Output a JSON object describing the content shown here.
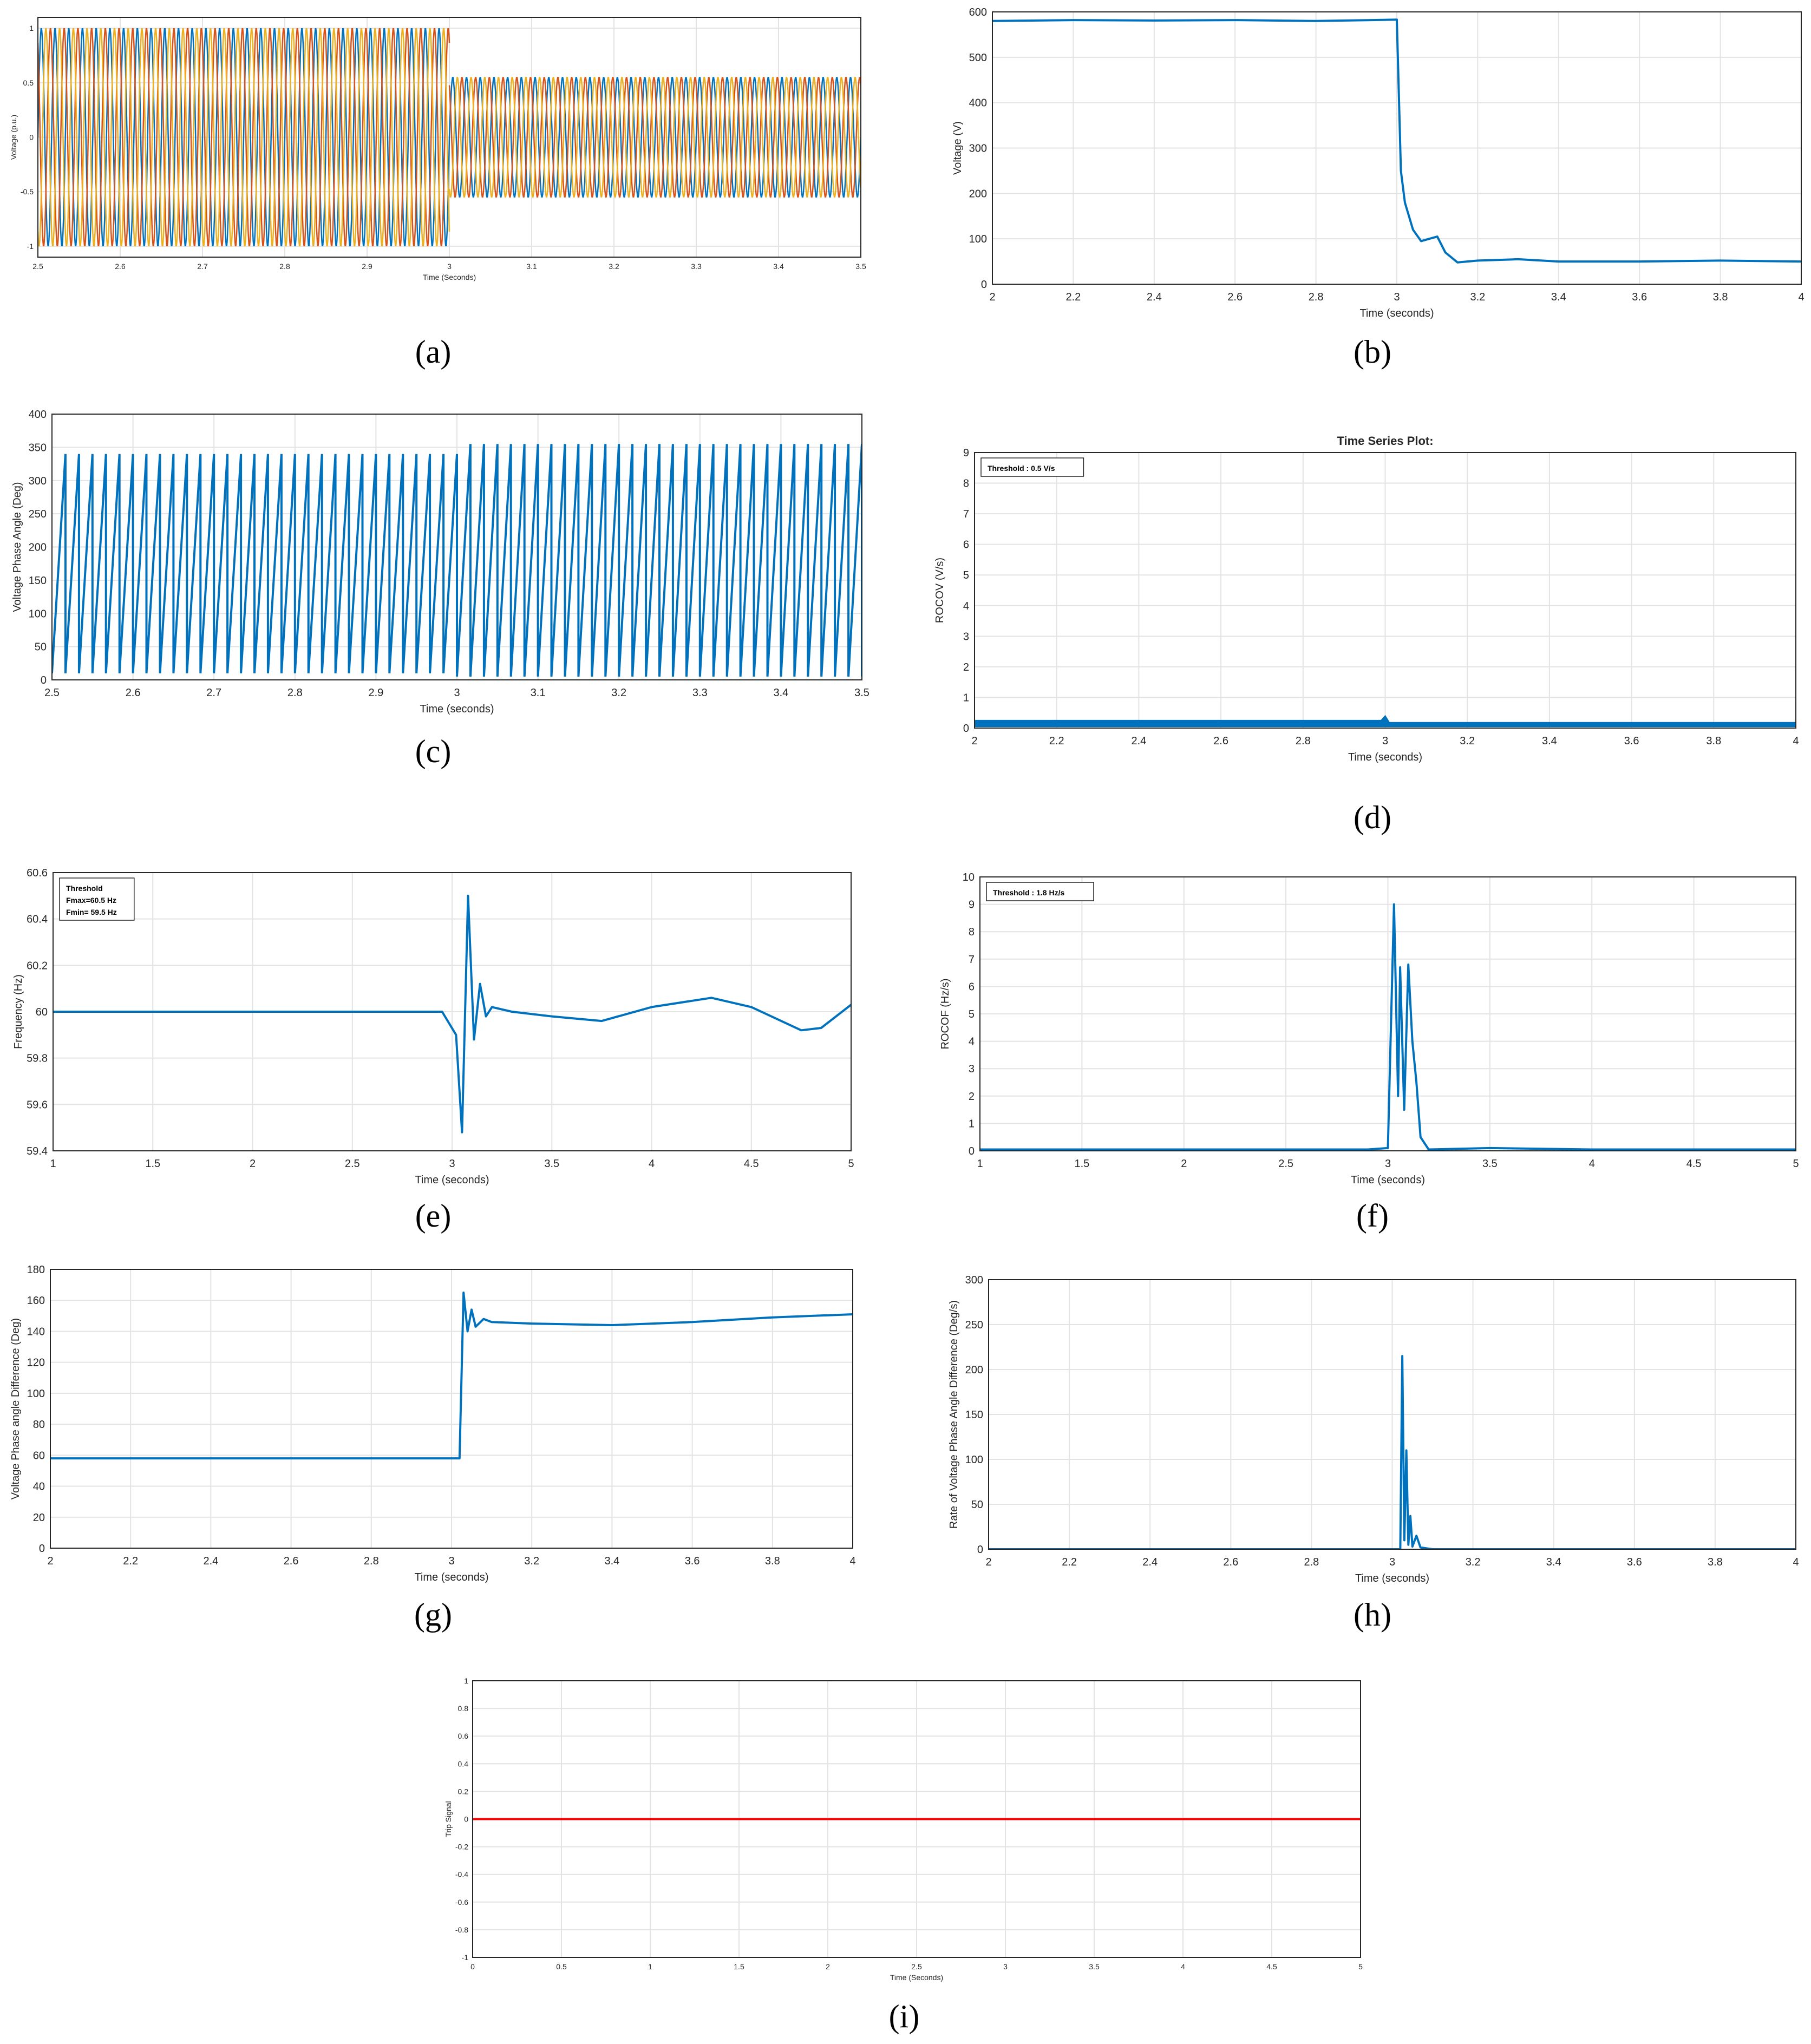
{
  "figure": {
    "title": ""
  },
  "chart_data": [
    {
      "id": "a",
      "panel_label": "(a)",
      "type": "line",
      "title": "",
      "xlabel": "Time (Seconds)",
      "ylabel": "Voltage (p.u.)",
      "xlim": [
        2.5,
        3.5
      ],
      "ylim": [
        -1.1,
        1.1
      ],
      "xticks": [
        "2.5",
        "2.6",
        "2.7",
        "2.8",
        "2.9",
        "3",
        "3.1",
        "3.2",
        "3.3",
        "3.4",
        "3.5"
      ],
      "yticks": [
        "-1",
        "-0.5",
        "0",
        "0.5",
        "1"
      ],
      "grid": true,
      "colors": [
        "#0072BD",
        "#D95319",
        "#EDB120"
      ],
      "series": [
        {
          "x": [
            2.5,
            3.0
          ],
          "y_amplitude": [
            1,
            1
          ],
          "frequency_hz": 60,
          "phase_deg": 0
        },
        {
          "x": [
            3.0,
            3.5
          ],
          "y_amplitude": [
            0.55,
            0.55
          ],
          "frequency_hz": 60,
          "phase_deg": 0
        }
      ]
    },
    {
      "id": "b",
      "panel_label": "(b)",
      "type": "line",
      "title": "",
      "xlabel": "Time (seconds)",
      "ylabel": "Voltage (V)",
      "xlim": [
        2,
        4
      ],
      "ylim": [
        0,
        600
      ],
      "xticks": [
        "2",
        "2.2",
        "2.4",
        "2.6",
        "2.8",
        "3",
        "3.2",
        "3.4",
        "3.6",
        "3.8",
        "4"
      ],
      "yticks": [
        "0",
        "100",
        "200",
        "300",
        "400",
        "500",
        "600"
      ],
      "grid": true,
      "color": "#0072BD",
      "series": [
        {
          "x": [
            2.0,
            2.2,
            2.4,
            2.6,
            2.8,
            3.0,
            3.005,
            3.01,
            3.02,
            3.04,
            3.06,
            3.08,
            3.1,
            3.12,
            3.15,
            3.2,
            3.3,
            3.4,
            3.6,
            3.8,
            4.0
          ],
          "y": [
            580,
            582,
            581,
            582,
            580,
            583,
            420,
            250,
            180,
            120,
            95,
            100,
            105,
            70,
            48,
            52,
            55,
            50,
            50,
            52,
            50
          ]
        }
      ]
    },
    {
      "id": "c",
      "panel_label": "(c)",
      "type": "line",
      "title": "",
      "xlabel": "Time (seconds)",
      "ylabel": "Voltage Phase Angle (Deg)",
      "xlim": [
        2.5,
        3.5
      ],
      "ylim": [
        0,
        400
      ],
      "xticks": [
        "2.5",
        "2.6",
        "2.7",
        "2.8",
        "2.9",
        "3",
        "3.1",
        "3.2",
        "3.3",
        "3.4",
        "3.5"
      ],
      "yticks": [
        "0",
        "50",
        "100",
        "150",
        "200",
        "250",
        "300",
        "350",
        "400"
      ],
      "grid": true,
      "color": "#0072BD",
      "series": [
        {
          "x": [
            2.5,
            3.0
          ],
          "sawtooth_min": 10,
          "sawtooth_max": 340,
          "frequency_hz": 60
        },
        {
          "x": [
            3.0,
            3.5
          ],
          "sawtooth_min": 5,
          "sawtooth_max": 355,
          "frequency_hz": 60
        }
      ]
    },
    {
      "id": "d",
      "panel_label": "(d)",
      "type": "line",
      "title": "Time Series Plot:",
      "xlabel": "Time (seconds)",
      "ylabel": "ROCOV (V/s)",
      "annotation": "Threshold : 0.5 V/s",
      "xlim": [
        2,
        4
      ],
      "ylim": [
        0,
        9
      ],
      "xticks": [
        "2",
        "2.2",
        "2.4",
        "2.6",
        "2.8",
        "3",
        "3.2",
        "3.4",
        "3.6",
        "3.8",
        "4"
      ],
      "yticks": [
        "0",
        "1",
        "2",
        "3",
        "4",
        "5",
        "6",
        "7",
        "8",
        "9"
      ],
      "grid": true,
      "color": "#0072BD",
      "series": [
        {
          "x": [
            2.0,
            2.5,
            2.99,
            3.0,
            3.01,
            3.5,
            4.0
          ],
          "y_band_low": [
            0.05,
            0.05,
            0.05,
            0.05,
            0.05,
            0.05,
            0.05
          ],
          "y_band_high": [
            0.25,
            0.25,
            0.25,
            0.4,
            0.18,
            0.18,
            0.18
          ]
        }
      ]
    },
    {
      "id": "e",
      "panel_label": "(e)",
      "type": "line",
      "title": "",
      "xlabel": "Time (seconds)",
      "ylabel": "Frequency (Hz)",
      "annotation": [
        "Threshold",
        "Fmax=60.5 Hz",
        "Fmin= 59.5 Hz"
      ],
      "xlim": [
        1,
        5
      ],
      "ylim": [
        59.4,
        60.6
      ],
      "xticks": [
        "1",
        "1.5",
        "2",
        "2.5",
        "3",
        "3.5",
        "4",
        "4.5",
        "5"
      ],
      "yticks": [
        "59.4",
        "59.6",
        "59.8",
        "60",
        "60.2",
        "60.4",
        "60.6"
      ],
      "grid": true,
      "color": "#0072BD",
      "series": [
        {
          "x": [
            1.0,
            1.5,
            2.0,
            2.5,
            2.95,
            3.02,
            3.05,
            3.08,
            3.11,
            3.14,
            3.17,
            3.2,
            3.3,
            3.5,
            3.75,
            4.0,
            4.3,
            4.5,
            4.75,
            4.85,
            5.0
          ],
          "y": [
            60.0,
            60.0,
            60.0,
            60.0,
            60.0,
            59.9,
            59.48,
            60.5,
            59.88,
            60.12,
            59.98,
            60.02,
            60.0,
            59.98,
            59.96,
            60.02,
            60.06,
            60.02,
            59.92,
            59.93,
            60.03
          ]
        }
      ]
    },
    {
      "id": "f",
      "panel_label": "(f)",
      "type": "line",
      "title": "",
      "xlabel": "Time (seconds)",
      "ylabel": "ROCOF (Hz/s)",
      "annotation": "Threshold : 1.8 Hz/s",
      "xlim": [
        1,
        5
      ],
      "ylim": [
        0,
        10
      ],
      "xticks": [
        "1",
        "1.5",
        "2",
        "2.5",
        "3",
        "3.5",
        "4",
        "4.5",
        "5"
      ],
      "yticks": [
        "0",
        "1",
        "2",
        "3",
        "4",
        "5",
        "6",
        "7",
        "8",
        "9",
        "10"
      ],
      "grid": true,
      "color": "#0072BD",
      "series": [
        {
          "x": [
            1.0,
            2.9,
            3.0,
            3.03,
            3.05,
            3.06,
            3.08,
            3.1,
            3.12,
            3.14,
            3.16,
            3.2,
            3.5,
            4.0,
            5.0
          ],
          "y": [
            0.05,
            0.05,
            0.1,
            9.0,
            2.0,
            6.7,
            1.5,
            6.8,
            4.0,
            2.5,
            0.5,
            0.05,
            0.1,
            0.05,
            0.05
          ]
        }
      ]
    },
    {
      "id": "g",
      "panel_label": "(g)",
      "type": "line",
      "title": "",
      "xlabel": "Time (seconds)",
      "ylabel": "Voltage Phase angle Difference (Deg)",
      "xlim": [
        2,
        4
      ],
      "ylim": [
        0,
        180
      ],
      "xticks": [
        "2",
        "2.2",
        "2.4",
        "2.6",
        "2.8",
        "3",
        "3.2",
        "3.4",
        "3.6",
        "3.8",
        "4"
      ],
      "yticks": [
        "0",
        "20",
        "40",
        "60",
        "80",
        "100",
        "120",
        "140",
        "160",
        "180"
      ],
      "grid": true,
      "color": "#0072BD",
      "series": [
        {
          "x": [
            2.0,
            2.5,
            3.0,
            3.02,
            3.03,
            3.04,
            3.05,
            3.06,
            3.08,
            3.1,
            3.2,
            3.4,
            3.6,
            3.8,
            4.0
          ],
          "y": [
            58,
            58,
            58,
            58,
            165,
            140,
            154,
            143,
            148,
            146,
            145,
            144,
            146,
            149,
            151
          ]
        }
      ]
    },
    {
      "id": "h",
      "panel_label": "(h)",
      "type": "line",
      "title": "",
      "xlabel": "Time (seconds)",
      "ylabel": "Rate of Voltage Phase Angle Difference (Deg/s)",
      "xlim": [
        2,
        4
      ],
      "ylim": [
        0,
        300
      ],
      "xticks": [
        "2",
        "2.2",
        "2.4",
        "2.6",
        "2.8",
        "3",
        "3.2",
        "3.4",
        "3.6",
        "3.8",
        "4"
      ],
      "yticks": [
        "0",
        "50",
        "100",
        "150",
        "200",
        "250",
        "300"
      ],
      "grid": true,
      "color": "#0072BD",
      "series": [
        {
          "x": [
            2.0,
            3.0,
            3.02,
            3.025,
            3.03,
            3.035,
            3.04,
            3.045,
            3.05,
            3.06,
            3.07,
            3.1,
            4.0
          ],
          "y": [
            0,
            0,
            0,
            215,
            10,
            110,
            5,
            37,
            3,
            15,
            2,
            0,
            0
          ]
        }
      ]
    },
    {
      "id": "i",
      "panel_label": "(i)",
      "type": "line",
      "title": "",
      "xlabel": "Time (Seconds)",
      "ylabel": "Trip Signal",
      "xlim": [
        0,
        5
      ],
      "ylim": [
        -1,
        1
      ],
      "xticks": [
        "0",
        "0.5",
        "1",
        "1.5",
        "2",
        "2.5",
        "3",
        "3.5",
        "4",
        "4.5",
        "5"
      ],
      "yticks": [
        "-1",
        "-0.8",
        "-0.6",
        "-0.4",
        "-0.2",
        "0",
        "0.2",
        "0.4",
        "0.6",
        "0.8",
        "1"
      ],
      "grid": true,
      "color": "#FF0000",
      "series": [
        {
          "x": [
            0,
            5
          ],
          "y": [
            0,
            0
          ]
        }
      ]
    }
  ]
}
